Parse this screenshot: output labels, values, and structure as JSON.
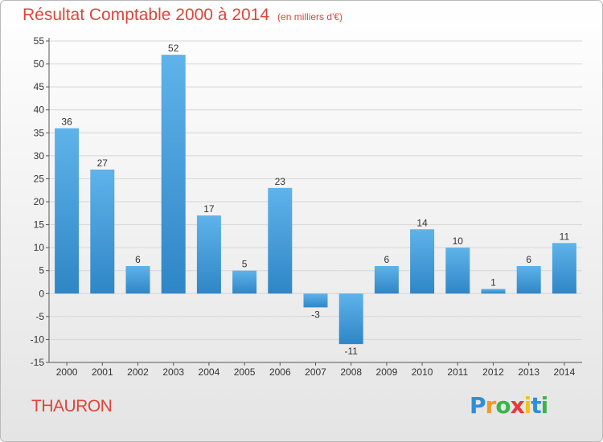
{
  "header": {
    "title": "Résultat Comptable 2000 à 2014",
    "unit": "(en milliers d'€)"
  },
  "footer": {
    "commune": "THAURON",
    "logo_letters": [
      "P",
      "r",
      "o",
      "x",
      "i",
      "t",
      "i"
    ],
    "logo_colors": [
      "#2e8fd8",
      "#f29b1d",
      "#3bb54a",
      "#e8383d",
      "#f2c21d",
      "#2e8fd8",
      "#3bb54a"
    ]
  },
  "colors": {
    "title": "#e0443a",
    "bar_light": "#5fb3ea",
    "bar_dark": "#2f86c6"
  },
  "chart_data": {
    "type": "bar",
    "categories": [
      "2000",
      "2001",
      "2002",
      "2003",
      "2004",
      "2005",
      "2006",
      "2007",
      "2008",
      "2009",
      "2010",
      "2011",
      "2012",
      "2013",
      "2014"
    ],
    "values": [
      36,
      27,
      6,
      52,
      17,
      5,
      23,
      -3,
      -11,
      6,
      14,
      10,
      1,
      6,
      11
    ],
    "data_labels": [
      "36",
      "27",
      "6",
      "52",
      "17",
      "5",
      "23",
      "-3",
      "-11",
      "6",
      "14",
      "10",
      "1",
      "6",
      "11"
    ],
    "ylim": [
      -15,
      55
    ],
    "yticks": [
      -15,
      -10,
      -5,
      0,
      5,
      10,
      15,
      20,
      25,
      30,
      35,
      40,
      45,
      50,
      55
    ],
    "ytick_labels": [
      "-15",
      "-10",
      "-5",
      "0",
      "5",
      "10",
      "15",
      "20",
      "25",
      "30",
      "35",
      "40",
      "45",
      "50",
      "55"
    ],
    "grid": true
  }
}
